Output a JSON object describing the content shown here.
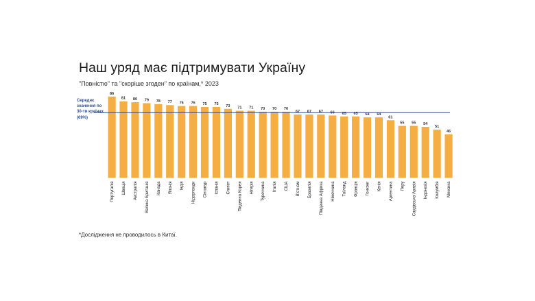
{
  "title": "Наш уряд має підтримувати Україну",
  "subtitle": "\"Повністю\" та \"скоріше згоден\" по країнам,* 2023",
  "footnote": "*Дослідження не проводилось в Китаї.",
  "avg_label_lines": [
    "Середнє",
    "значення по",
    "30-ти країнах",
    "(69%)"
  ],
  "colors": {
    "bar": "#F5AE43",
    "avg_line": "#2B4A9A",
    "text": "#1f1f1f"
  },
  "chart_data": {
    "type": "bar",
    "title": "Наш уряд має підтримувати Україну",
    "subtitle": "\"Повністю\" та \"скоріше згоден\" по країнам,* 2023",
    "categories": [
      "Португалія",
      "Швеція",
      "Австралія",
      "Велика Британія",
      "Канада",
      "Японія",
      "Індія",
      "Нідерланди",
      "Сінгапур",
      "Іспанія",
      "Єгипет",
      "Південна Корея",
      "Нігерія",
      "Туреччина",
      "Італія",
      "США",
      "В'єтнам",
      "Бразилія",
      "Південна Африка",
      "Німеччина",
      "Таїланд",
      "Франція",
      "Гонконг",
      "Кенія",
      "Аргентина",
      "Перу",
      "Саудівська Аравія",
      "Індонезія",
      "Колумбія",
      "Мексика"
    ],
    "values": [
      86,
      81,
      80,
      79,
      78,
      77,
      76,
      76,
      75,
      75,
      73,
      71,
      71,
      70,
      70,
      70,
      67,
      67,
      67,
      66,
      65,
      65,
      64,
      64,
      61,
      55,
      55,
      54,
      51,
      46
    ],
    "average": 69,
    "ylim": [
      0,
      100
    ],
    "grid": false,
    "legend": "none"
  }
}
